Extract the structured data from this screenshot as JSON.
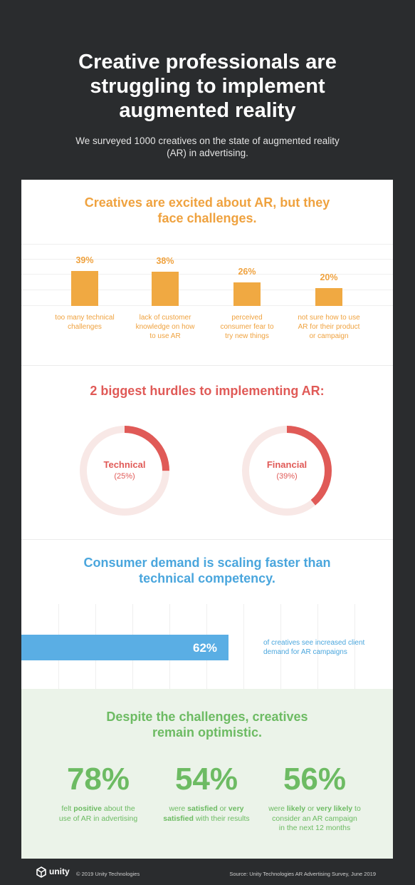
{
  "header": {
    "title_lines": [
      "Creative professionals are",
      "struggling to implement",
      "augmented reality"
    ],
    "subtitle": "We surveyed 1000 creatives on the state of augmented reality (AR) in advertising."
  },
  "colors": {
    "background": "#2a2c2e",
    "orange": "#f0a942",
    "red": "#e05a57",
    "blue": "#5aaee4",
    "green": "#6dbb63",
    "green_bg": "#ebf3e9"
  },
  "section_challenges": {
    "title_lines": [
      "Creatives are excited about AR, but they",
      "face challenges."
    ]
  },
  "section_hurdles": {
    "title": "2 biggest hurdles to implementing AR:"
  },
  "section_demand": {
    "title_lines": [
      "Consumer demand is scaling faster than",
      "technical competency."
    ],
    "description_lines": [
      "of creatives see increased client",
      "demand for AR campaigns"
    ]
  },
  "section_optimism": {
    "title_lines": [
      "Despite the challenges, creatives",
      "remain optimistic."
    ]
  },
  "chart_data": [
    {
      "type": "bar",
      "categories": [
        "too many technical challenges",
        "lack of customer knowledge on how to use AR",
        "perceived consumer fear to try new things",
        "not sure how to use AR for their product or campaign"
      ],
      "category_lines": [
        [
          "too many technical",
          "challenges"
        ],
        [
          "lack of customer",
          "knowledge on how",
          "to use AR"
        ],
        [
          "perceived",
          "consumer fear to",
          "try new things"
        ],
        [
          "not sure how to use",
          "AR for their product",
          "or campaign"
        ]
      ],
      "values": [
        39,
        38,
        26,
        20
      ],
      "value_labels": [
        "39%",
        "38%",
        "26%",
        "20%"
      ],
      "title": "Creatives are excited about AR, but they face challenges.",
      "grid": true
    },
    {
      "type": "pie",
      "title": "2 biggest hurdles to implementing AR:",
      "series": [
        {
          "name": "Technical",
          "value": 25,
          "label": "(25%)"
        },
        {
          "name": "Financial",
          "value": 39,
          "label": "(39%)"
        }
      ]
    },
    {
      "type": "bar",
      "orientation": "horizontal",
      "title": "Consumer demand is scaling faster than technical competency.",
      "values": [
        62
      ],
      "value_labels": [
        "62%"
      ],
      "xlim": [
        0,
        100
      ],
      "grid": true
    }
  ],
  "stats": [
    {
      "value": "78%",
      "parts": [
        [
          "felt ",
          false
        ],
        [
          "positive",
          true
        ],
        [
          " about the",
          false
        ],
        [
          "\n",
          false
        ],
        [
          "use of AR in advertising",
          false
        ]
      ]
    },
    {
      "value": "54%",
      "parts": [
        [
          "were ",
          false
        ],
        [
          "satisfied",
          true
        ],
        [
          " or ",
          false
        ],
        [
          "very",
          true
        ],
        [
          "\n",
          false
        ],
        [
          "satisfied",
          true
        ],
        [
          " with their results",
          false
        ]
      ]
    },
    {
      "value": "56%",
      "parts": [
        [
          "were ",
          false
        ],
        [
          "likely",
          true
        ],
        [
          " or ",
          false
        ],
        [
          "very likely",
          true
        ],
        [
          " to",
          false
        ],
        [
          "\n",
          false
        ],
        [
          "consider an AR campaign",
          false
        ],
        [
          "\n",
          false
        ],
        [
          "in the next 12 months",
          false
        ]
      ]
    }
  ],
  "footer": {
    "logo_text": "unity",
    "copyright": "© 2019 Unity Technologies",
    "source": "Source: Unity Technologies AR Advertising Survey, June 2019"
  }
}
